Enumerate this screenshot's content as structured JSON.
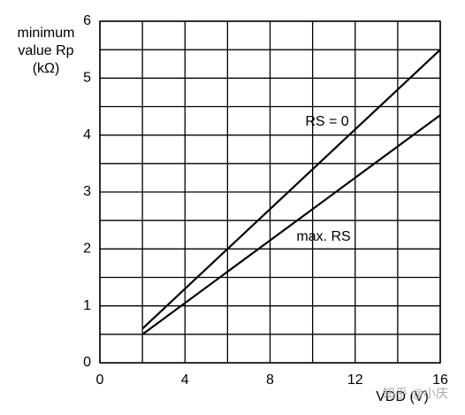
{
  "chart_data": {
    "type": "line",
    "y_label_lines": [
      "minimum",
      "value Rp",
      "(kΩ)"
    ],
    "x_label": "VDD (V)",
    "watermark": "知乎 @小庆",
    "series": [
      {
        "name": "RS = 0",
        "color": "#000000",
        "x": [
          2,
          16
        ],
        "values": [
          0.6,
          5.5
        ]
      },
      {
        "name": "max. RS",
        "color": "#000000",
        "x": [
          2,
          16
        ],
        "values": [
          0.5,
          4.35
        ]
      }
    ],
    "xlim": [
      0,
      16
    ],
    "ylim": [
      0,
      6
    ],
    "xticks": [
      0,
      4,
      8,
      12,
      16
    ],
    "yticks": [
      0,
      1,
      2,
      3,
      4,
      5,
      6
    ],
    "xminor": [
      2,
      6,
      10,
      14
    ],
    "yminor": [
      0.5,
      1.5,
      2.5,
      3.5,
      4.5,
      5.5
    ],
    "grid": true
  }
}
